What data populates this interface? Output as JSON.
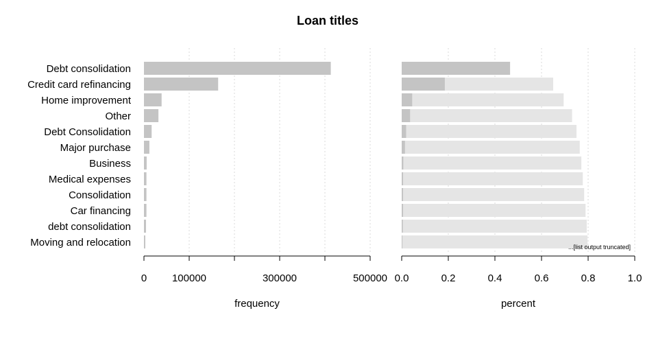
{
  "chart_data": {
    "type": "bar",
    "title": "Loan titles",
    "categories": [
      "Debt consolidation",
      "Credit card refinancing",
      "Home improvement",
      "Other",
      "Debt Consolidation",
      "Major purchase",
      "Business",
      "Medical expenses",
      "Consolidation",
      "Car financing",
      "debt consolidation",
      "Moving and relocation"
    ],
    "panels": [
      {
        "name": "frequency",
        "xlabel": "frequency",
        "xlim": [
          0,
          500000
        ],
        "ticks": [
          0,
          100000,
          200000,
          300000,
          400000,
          500000
        ],
        "tick_labels": [
          "0",
          "100000",
          "",
          "300000",
          "",
          "500000"
        ],
        "series": [
          {
            "values": [
              413000,
              164000,
              39000,
              32000,
              17000,
              12000,
              6000,
              5500,
              5500,
              5500,
              4500,
              3000
            ]
          }
        ]
      },
      {
        "name": "percent",
        "xlabel": "percent",
        "xlim": [
          0,
          1.0
        ],
        "ticks": [
          0,
          0.2,
          0.4,
          0.6,
          0.8,
          1.0
        ],
        "tick_labels": [
          "0.0",
          "0.2",
          "0.4",
          "0.6",
          "0.8",
          "1.0"
        ],
        "series": [
          {
            "values": [
              0.465,
              0.185,
              0.045,
              0.036,
              0.019,
              0.014,
              0.007,
              0.006,
              0.006,
              0.006,
              0.005,
              0.003
            ]
          },
          {
            "values": [
              0.465,
              0.65,
              0.695,
              0.731,
              0.75,
              0.764,
              0.771,
              0.777,
              0.783,
              0.789,
              0.794,
              0.797
            ]
          }
        ]
      }
    ],
    "grid": true,
    "annotation": "...[list output truncated]",
    "colors": {
      "bar": "#c4c4c4",
      "cumulative": "#e5e5e5",
      "grid": "#d9d9d9",
      "axis": "#000000"
    }
  }
}
